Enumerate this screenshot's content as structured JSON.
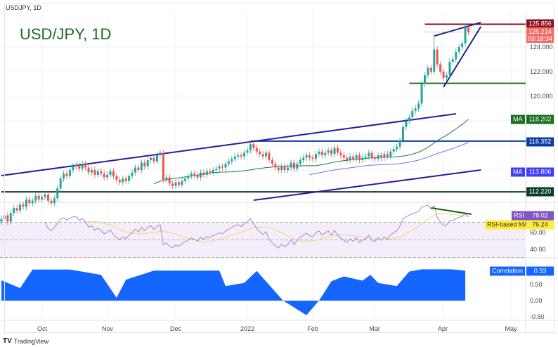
{
  "header": {
    "symbol": "USDJPY, 1D",
    "title": "USD/JPY, 1D"
  },
  "footer": {
    "brand": "TradingView",
    "brand_icon": "tradingview-logo"
  },
  "colors": {
    "up": "#26a69a",
    "down": "#ef5350",
    "ma50": "#1b7a3a",
    "ma_slow": "#7b6cf0",
    "rsi": "#9b8cc9",
    "rsi_ma": "#f3d98a",
    "correlation": "#1565ff"
  },
  "price_axis": {
    "ticks": [
      "124.000",
      "122.000",
      "120.000"
    ],
    "levels": [
      {
        "label": "125.856",
        "color": "#8b1020"
      },
      {
        "label": "116.352",
        "color": "#0d3ca8"
      },
      {
        "label": "112.220",
        "color": "#0b3d2b"
      }
    ],
    "current": {
      "price": "125.214",
      "countdown": "03:18:34"
    },
    "ma_fast": {
      "tag": "MA",
      "value": "118.202",
      "color": "#1b6e20"
    },
    "ma_slow": {
      "tag": "MA",
      "value": "113.806",
      "color": "#3d3dff"
    }
  },
  "rsi_panel": {
    "rsi_tag": "RSI",
    "rsi_value": "78.02",
    "ma_tag": "RSI-based MA",
    "ma_value": "76.24",
    "ticks": [
      "60.00",
      "40.00"
    ]
  },
  "correlation_panel": {
    "tag": "Correlation",
    "value": "0.93",
    "ticks": [
      "0.50",
      "0.00",
      "-0.50"
    ]
  },
  "time_axis": {
    "labels": [
      "Oct",
      "Nov",
      "Dec",
      "2022",
      "Feb",
      "Mar",
      "Apr",
      "May"
    ]
  },
  "chart_data": {
    "type": "candlestick",
    "title": "USD/JPY, 1D",
    "ylim": [
      109.5,
      126.5
    ],
    "closes": [
      110.0,
      110.3,
      109.8,
      110.5,
      110.9,
      110.7,
      111.2,
      111.0,
      111.6,
      111.3,
      111.5,
      111.9,
      111.6,
      111.8,
      112.0,
      111.5,
      111.3,
      111.7,
      112.5,
      113.3,
      113.7,
      113.5,
      114.0,
      114.3,
      114.4,
      114.1,
      114.5,
      114.2,
      113.8,
      114.0,
      113.6,
      113.9,
      113.7,
      113.4,
      113.6,
      113.9,
      113.5,
      113.2,
      113.0,
      113.3,
      113.1,
      113.5,
      113.8,
      114.2,
      114.0,
      114.6,
      114.3,
      114.8,
      115.0,
      114.7,
      115.2,
      115.4,
      113.2,
      113.4,
      112.9,
      112.7,
      113.0,
      112.8,
      113.1,
      113.3,
      113.5,
      113.7,
      113.6,
      113.4,
      113.8,
      113.6,
      113.9,
      113.8,
      114.0,
      114.1,
      114.3,
      114.2,
      114.5,
      114.7,
      114.9,
      115.1,
      115.2,
      115.1,
      115.4,
      115.6,
      116.1,
      115.8,
      115.5,
      115.3,
      115.1,
      115.4,
      114.8,
      114.5,
      114.2,
      114.0,
      114.3,
      114.0,
      114.2,
      114.6,
      114.1,
      114.5,
      114.8,
      115.0,
      115.2,
      115.0,
      114.9,
      115.3,
      115.5,
      115.2,
      115.4,
      115.6,
      115.3,
      115.8,
      115.4,
      115.2,
      115.0,
      114.8,
      115.1,
      114.9,
      115.2,
      114.8,
      115.0,
      115.1,
      115.4,
      115.0,
      114.9,
      115.2,
      115.0,
      115.3,
      115.1,
      115.5,
      115.7,
      115.9,
      116.4,
      117.5,
      118.0,
      118.3,
      118.8,
      119.0,
      119.4,
      121.0,
      121.7,
      122.3,
      122.0,
      123.8,
      122.6,
      122.0,
      121.5,
      121.7,
      122.8,
      123.0,
      123.6,
      124.0,
      124.3,
      125.6,
      125.2
    ],
    "spike_high": {
      "index": 139,
      "price": 124.95
    },
    "indicators": {
      "ma_fast_period": 50,
      "ma_slow_period": 100,
      "rsi_period": 14,
      "rsi_ma_period": 14
    },
    "horizontal_levels": [
      {
        "price": 125.856,
        "from_index": 136
      },
      {
        "price": 125.214,
        "from_index": 136,
        "style": "dotted"
      },
      {
        "price": 121.05,
        "from_index": 131
      },
      {
        "price": 116.352,
        "from_index": 80
      },
      {
        "price": 112.22,
        "from_index": 0
      }
    ],
    "trendlines": [
      {
        "from": [
          0,
          113.54
        ],
        "to": [
          146,
          118.57
        ],
        "color": "#2a1a9a"
      },
      {
        "from": [
          81,
          111.54
        ],
        "to": [
          154,
          114.0
        ],
        "color": "#2a1a9a"
      },
      {
        "from": [
          139,
          124.9
        ],
        "to": [
          154,
          126.0
        ],
        "color": "#1a2a8a"
      },
      {
        "from": [
          142,
          120.74
        ],
        "to": [
          154,
          125.66
        ],
        "color": "#1a2a8a"
      }
    ],
    "rsi_trendline": {
      "from": [
        138,
        86.4
      ],
      "to": [
        151,
        79.2
      ]
    },
    "rsi_levels": [
      70,
      50,
      30
    ],
    "correlation": [
      [
        0,
        0.63
      ],
      [
        6,
        0.39
      ],
      [
        10,
        0.96
      ],
      [
        22,
        0.96
      ],
      [
        32,
        0.8
      ],
      [
        37,
        0.09
      ],
      [
        40,
        0.65
      ],
      [
        49,
        0.93
      ],
      [
        70,
        0.93
      ],
      [
        72,
        0.45
      ],
      [
        78,
        0.55
      ],
      [
        82,
        0.92
      ],
      [
        90.5,
        0.0
      ],
      [
        98,
        -0.45
      ],
      [
        102,
        0.0
      ],
      [
        106,
        0.6
      ],
      [
        110,
        0.75
      ],
      [
        116,
        0.62
      ],
      [
        118.5,
        0.8
      ],
      [
        121,
        0.55
      ],
      [
        127,
        0.45
      ],
      [
        131,
        0.9
      ],
      [
        135,
        0.97
      ],
      [
        144.5,
        0.97
      ],
      [
        149,
        0.93
      ]
    ]
  }
}
